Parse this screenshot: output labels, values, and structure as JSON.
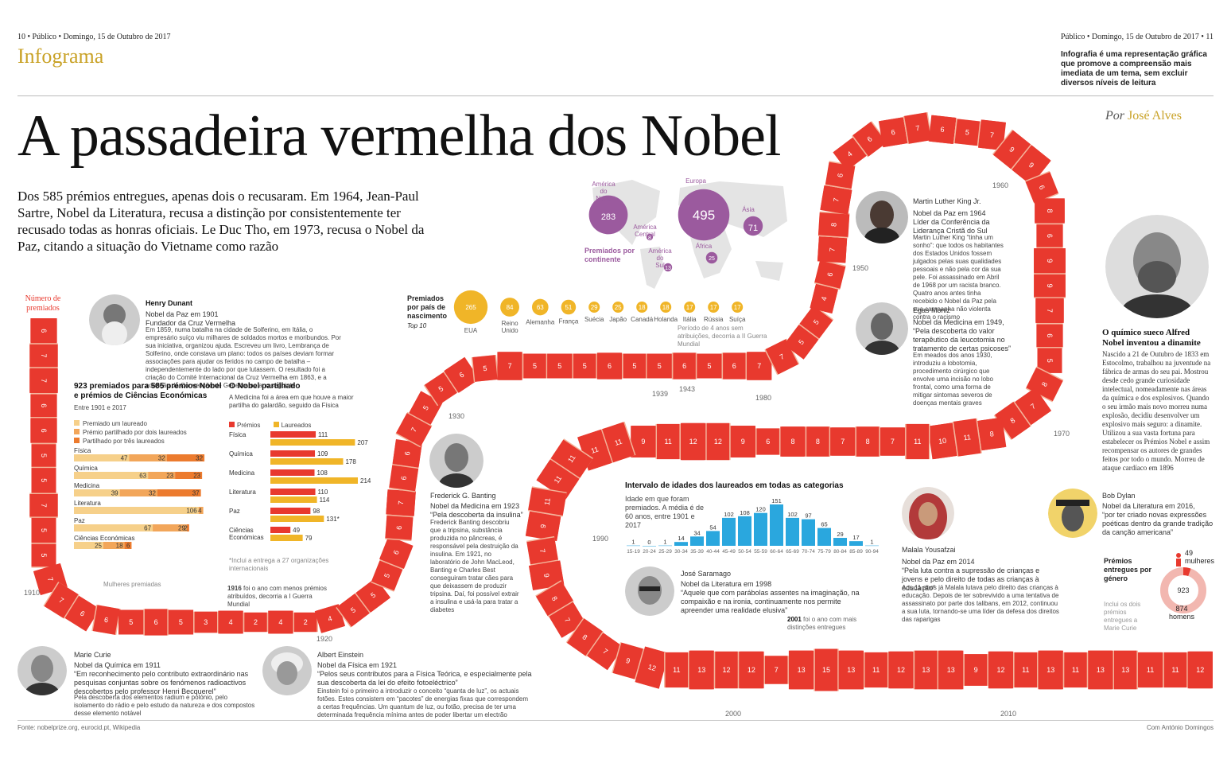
{
  "header": {
    "left": "10 • Público • Domingo, 15 de Outubro de 2017",
    "right": "Público • Domingo, 15 de Outubro de 2017 • 11",
    "section": "Infograma",
    "tagline": "Infografia é uma representação gráfica que promove a compreensão mais imediata de um tema, sem excluir diversos níveis de leitura"
  },
  "title": "A passadeira vermelha dos Nobel",
  "byline": {
    "prefix": "Por",
    "author": "José Alves"
  },
  "lede": "Dos 585 prémios entregues, apenas dois o recusaram. Em 1964, Jean-Paul Sartre, Nobel da Literatura, recusa a distinção por consistentemente ter recusado todas as honras oficiais. Le Duc Tho, em 1973, recusa o Nobel da Paz, citando a situação do Vietname como razão",
  "path_label": "Número de premiados",
  "path": {
    "color": "#e8392e",
    "stripe_color": "#f4b49a",
    "counts": [
      6,
      7,
      7,
      6,
      6,
      5,
      5,
      7,
      5,
      5,
      7,
      7,
      6,
      6,
      5,
      6,
      5,
      3,
      4,
      2,
      4,
      2,
      4,
      5,
      5,
      5,
      6,
      6,
      7,
      6,
      6,
      7,
      5,
      5,
      6,
      5,
      7,
      5,
      5,
      5,
      6,
      5,
      5,
      6,
      5,
      6,
      7,
      7,
      5,
      5,
      4,
      6,
      7,
      8,
      7,
      6,
      4,
      6,
      6,
      7,
      6,
      5,
      7,
      9,
      9,
      6,
      8,
      6,
      9,
      9,
      7,
      6,
      5,
      8,
      7,
      8,
      8,
      11,
      10,
      11,
      7,
      8,
      7,
      8,
      8,
      6,
      9,
      12,
      12,
      11,
      9,
      11,
      11,
      11,
      11,
      11,
      9,
      7,
      9,
      8,
      7,
      8,
      7,
      9,
      12,
      11,
      13,
      12,
      12,
      7,
      13,
      15,
      13,
      11,
      12,
      13,
      13,
      9,
      12,
      11,
      13,
      11,
      13,
      13,
      11,
      11,
      12
    ],
    "year_marks": [
      "1910",
      "1920",
      "1930",
      "1939",
      "1943",
      "1950",
      "1960",
      "1970",
      "1980",
      "1990",
      "2000",
      "2010"
    ],
    "annotations": {
      "women": "Mulheres premiadas",
      "y1916": "1916",
      "y1916_text": "foi o ano com menos prémios atribuídos, decorria a I Guerra Mundial",
      "war2": "Período de 4 anos sem atribuições, decorria a II Guerra Mundial",
      "y2001": "2001",
      "y2001_text": "foi o ano com mais distinções entregues"
    }
  },
  "continents": {
    "title": "Premiados por continente",
    "items": [
      {
        "name": "América do Norte",
        "value": "283"
      },
      {
        "name": "Europa",
        "value": "495"
      },
      {
        "name": "América Central",
        "value": "8"
      },
      {
        "name": "Ásia",
        "value": "71"
      },
      {
        "name": "América do Sul",
        "value": "13"
      },
      {
        "name": "África",
        "value": "25"
      }
    ],
    "color": "#9b5a9e"
  },
  "countries": {
    "title": "Premiados por país de nascimento",
    "subtitle": "Top 10",
    "color": "#f0b528",
    "items": [
      {
        "name": "EUA",
        "value": "265"
      },
      {
        "name": "Reino Unido",
        "value": "84"
      },
      {
        "name": "Alemanha",
        "value": "63"
      },
      {
        "name": "França",
        "value": "51"
      },
      {
        "name": "Suécia",
        "value": "29"
      },
      {
        "name": "Japão",
        "value": "25"
      },
      {
        "name": "Canadá",
        "value": "18"
      },
      {
        "name": "Holanda",
        "value": "18"
      },
      {
        "name": "Itália",
        "value": "17"
      },
      {
        "name": "Rússia",
        "value": "17"
      },
      {
        "name": "Suíça",
        "value": "17"
      }
    ]
  },
  "shared": {
    "title": "923 premiados para 585 prémios Nobel e prémios de Ciências Económicas",
    "subtitle": "Entre 1901 e 2017",
    "legend": [
      "Premiado um laureado",
      "Prémio partilhado por dois laureados",
      "Partilhado por três laureados"
    ],
    "colors": [
      "#f6d08a",
      "#f2a65a",
      "#ec7b2e"
    ],
    "rows": [
      {
        "name": "Física",
        "values": [
          47,
          32,
          32
        ]
      },
      {
        "name": "Química",
        "values": [
          63,
          23,
          23
        ]
      },
      {
        "name": "Medicina",
        "values": [
          39,
          32,
          37
        ]
      },
      {
        "name": "Literatura",
        "values": [
          106,
          4,
          0
        ]
      },
      {
        "name": "Paz",
        "values": [
          67,
          29,
          2
        ]
      },
      {
        "name": "Ciências Económicas",
        "values": [
          25,
          18,
          6
        ]
      }
    ]
  },
  "medicine": {
    "title": "O Nobel partilhado",
    "subtitle": "A Medicina foi a área em que houve a maior partilha do galardão, seguido da Física",
    "legend": [
      "Prémios",
      "Laureados"
    ],
    "colors": [
      "#e8392e",
      "#f0b528"
    ],
    "rows": [
      {
        "name": "Física",
        "premios": 111,
        "laureados": 207,
        "mark": ""
      },
      {
        "name": "Química",
        "premios": 109,
        "laureados": 178,
        "mark": ""
      },
      {
        "name": "Medicina",
        "premios": 108,
        "laureados": 214,
        "mark": ""
      },
      {
        "name": "Literatura",
        "premios": 110,
        "laureados": 114,
        "mark": ""
      },
      {
        "name": "Paz",
        "premios": 98,
        "laureados": 131,
        "mark": "*"
      },
      {
        "name": "Ciências Económicas",
        "premios": 49,
        "laureados": 79,
        "mark": ""
      }
    ],
    "note": "*Inclui a entrega a 27 organizações internacionais"
  },
  "ages": {
    "title": "Intervalo de idades dos laureados em todas as categorias",
    "subtitle": "Idade em que foram premiados. A média é de 60 anos, entre 1901 e 2017",
    "color": "#2aa7de",
    "bins": [
      "15-19",
      "20-24",
      "25-29",
      "30-34",
      "35-39",
      "40-44",
      "45-49",
      "50-54",
      "55-59",
      "60-64",
      "65-69",
      "70-74",
      "75-79",
      "80-84",
      "85-89",
      "90-94"
    ],
    "values": [
      1,
      0,
      1,
      14,
      34,
      54,
      102,
      108,
      120,
      151,
      102,
      97,
      65,
      29,
      17,
      1
    ]
  },
  "gender": {
    "title": "Prémios entregues por género",
    "total": "923",
    "women": "49",
    "women_label": "mulheres",
    "men": "874",
    "men_label": "homens",
    "note": "Inclui os dois prémios entregues a Marie Curie",
    "colors": [
      "#f2b7b0",
      "#e8392e"
    ]
  },
  "bios": {
    "dunant": {
      "name": "Henry Dunant",
      "role": "Nobel da Paz em 1901\nFundador da Cruz Vermelha",
      "text": "Em 1859, numa batalha na cidade de Solferino, em Itália, o empresário suíço viu milhares de soldados mortos e moribundos. Por sua iniciativa, organizou ajuda. Escreveu um livro, Lembrança de Solferino, onde constava um plano: todos os países deviam formar associações para ajudar os feridos no campo de batalha – independentemente do lado por que lutassem. O resultado foi a criação do Comité Internacional da Cruz Vermelha em 1863, e a adopção da Convenção de Genebra no ano seguinte"
    },
    "curie": {
      "name": "Marie Curie",
      "role": "Nobel da Química em 1911",
      "quote": "“Em reconhecimento pelo contributo extraordinário nas pesquisas conjuntas sobre os fenómenos radioactivos descobertos pelo professor Henri Becquerel”",
      "text": "Pela descoberta dos elementos radium e polónio, pelo isolamento do rádio e pelo estudo da natureza e dos compostos desse elemento notável"
    },
    "einstein": {
      "name": "Albert Einstein",
      "role": "Nobel da Física em 1921",
      "quote": "“Pelos seus contributos para a Física Teórica, e especialmente pela sua descoberta da lei do efeito fotoeléctrico”",
      "text": "Einstein foi o primeiro a introduzir o conceito “quanta de luz”, os actuais fotões. Estes consistem em “pacotes” de energias fixas que correspondem a certas frequências. Um quantum de luz, ou fotão, precisa de ter uma determinada frequência mínima antes de poder libertar um electrão"
    },
    "banting": {
      "name": "Frederick G. Banting",
      "role": "Nobel da Medicina em 1923",
      "quote": "“Pela descoberta da insulina”",
      "text": "Frederick Banting descobriu que a tripsina, substância produzida no pâncreas, é responsável pela destruição da insulina. Em 1921, no laboratório de John MacLeod, Banting e Charles Best conseguiram tratar cães para que deixassem de produzir tripsina. Daí, foi possível extrair a insulina e usá-la para tratar a diabetes"
    },
    "mlk": {
      "name": "Martin Luther King Jr.",
      "role": "Nobel da Paz em 1964\nLíder da Conferência da Liderança Cristã do Sul",
      "text": "Martin Luther King “tinha um sonho”: que todos os habitantes dos Estados Unidos fossem julgados pelas suas qualidades pessoais e não pela cor da sua pele. Foi assassinado em Abril de 1968 por um racista branco. Quatro anos antes tinha recebido o Nobel da Paz pela sua campanha não violenta contra o racismo"
    },
    "moniz": {
      "name": "Egas Moniz",
      "role": "Nobel da Medicina em 1949,",
      "quote": "“Pela descoberta do valor terapêutico da leucotomia no tratamento de certas psicoses”",
      "text": "Em meados dos anos 1930, introduziu a lobotomia, procedimento cirúrgico que envolve uma incisão no lobo frontal, como uma forma de mitigar sintomas severos de doenças mentais graves"
    },
    "saramago": {
      "name": "José Saramago",
      "role": "Nobel da Literatura em 1998",
      "quote": "“Aquele que com parábolas assentes na imaginação, na compaixão e na ironia, continuamente nos permite apreender uma realidade elusiva”"
    },
    "malala": {
      "name": "Malala Yousafzai",
      "role": "Nobel da Paz em 2014",
      "quote": "“Pela luta contra a supressão de crianças e jovens e pelo direito de todas as crianças à educação”",
      "text": "Aos 11 anos já Malala lutava pelo direito das crianças à educação. Depois de ter sobrevivido a uma tentativa de assassinato por parte dos talibans, em 2012, continuou a sua luta, tornando-se uma líder da defesa dos direitos das raparigas"
    },
    "dylan": {
      "name": "Bob Dylan",
      "role": "Nobel da Literatura em 2016,",
      "quote": "“por ter criado novas expressões poéticas dentro da grande tradição da canção americana”"
    },
    "alfred": {
      "heading": "O químico sueco Alfred Nobel inventou a dinamite",
      "text": "Nascido a 21 de Outubro de 1833 em Estocolmo, trabalhou na juventude na fábrica de armas do seu pai. Mostrou desde cedo grande curiosidade intelectual, nomeadamente nas áreas da química e dos explosivos. Quando o seu irmão mais novo morreu numa explosão, decidiu desenvolver um explosivo mais seguro: a dinamite. Utilizou a sua vasta fortuna para estabelecer os Prémios Nobel e assim recompensar os autores de grandes feitos por todo o mundo. Morreu de ataque cardíaco em 1896"
    }
  },
  "footer": {
    "left": "Fonte: nobelprize.org, eurocid.pt, Wikipedia",
    "right": "Com António Domingos"
  }
}
